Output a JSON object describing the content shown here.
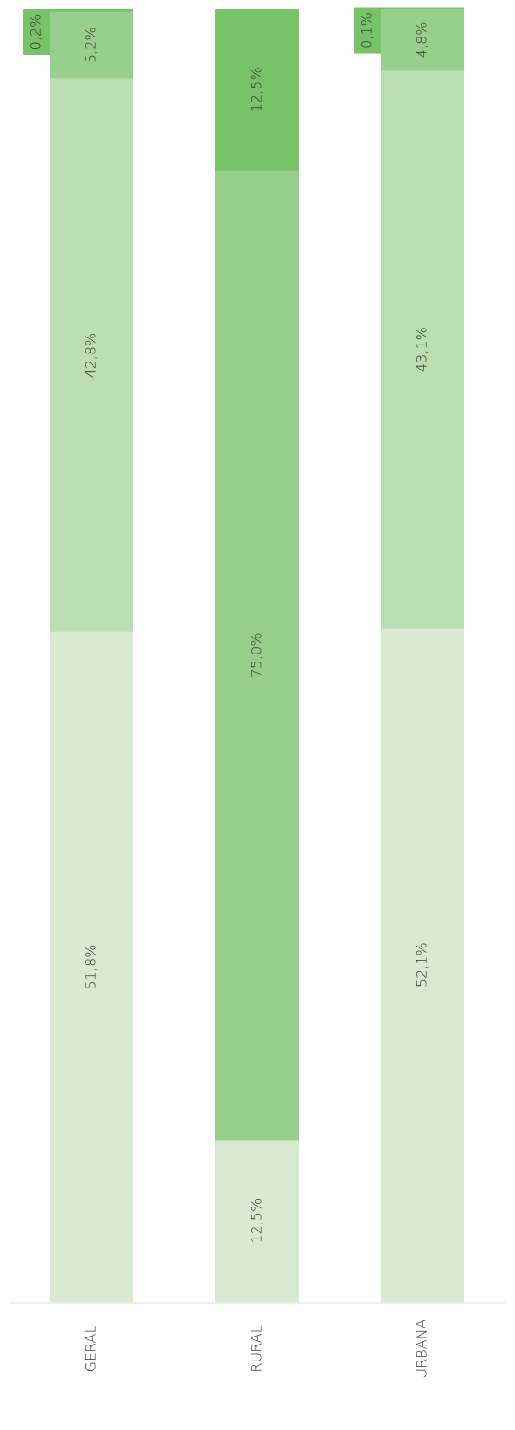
{
  "chart_data": {
    "type": "stacked_bar",
    "categories": [
      "GERAL",
      "RURAL",
      "URBANA"
    ],
    "series": [
      {
        "color": "#d9ead3",
        "values": [
          51.8,
          12.5,
          52.1
        ],
        "value_labels": [
          "51,8%",
          "12,5%",
          "52,1%"
        ]
      },
      {
        "color": "#bcdeb4",
        "values": [
          42.8,
          null,
          43.1
        ],
        "value_labels": [
          "42,8%",
          null,
          "43,1%"
        ]
      },
      {
        "color": "#99cf8c",
        "values": [
          5.2,
          75.0,
          4.8
        ],
        "value_labels": [
          "5,2%",
          "75,0%",
          "4,8%"
        ]
      },
      {
        "color": "#78c267",
        "values": [
          0.2,
          12.5,
          0.1
        ],
        "value_labels": [
          "0,2%",
          "12,5%",
          "0,1%"
        ]
      }
    ],
    "ylim": [
      0,
      100
    ]
  }
}
